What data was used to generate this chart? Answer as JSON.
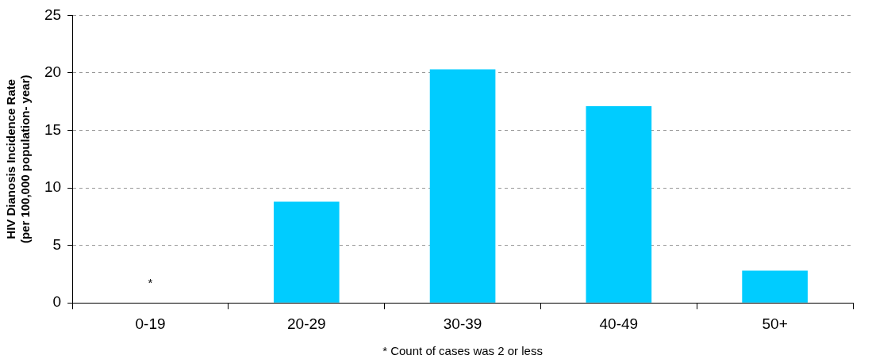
{
  "chart_data": {
    "type": "bar",
    "ylabel": "HIV Dianosis Incidence Rate\n(per 100,000 population- year)",
    "categories": [
      "0-19",
      "20-29",
      "30-39",
      "40-49",
      "50+"
    ],
    "values": [
      null,
      8.8,
      20.3,
      17.1,
      2.8
    ],
    "color": "#00ccff",
    "ylim": [
      0,
      25
    ],
    "yticks": [
      0,
      5,
      10,
      15,
      20,
      25
    ],
    "grid": "y",
    "annotations": [
      "*",
      "* Count of cases was 2 or less"
    ]
  }
}
